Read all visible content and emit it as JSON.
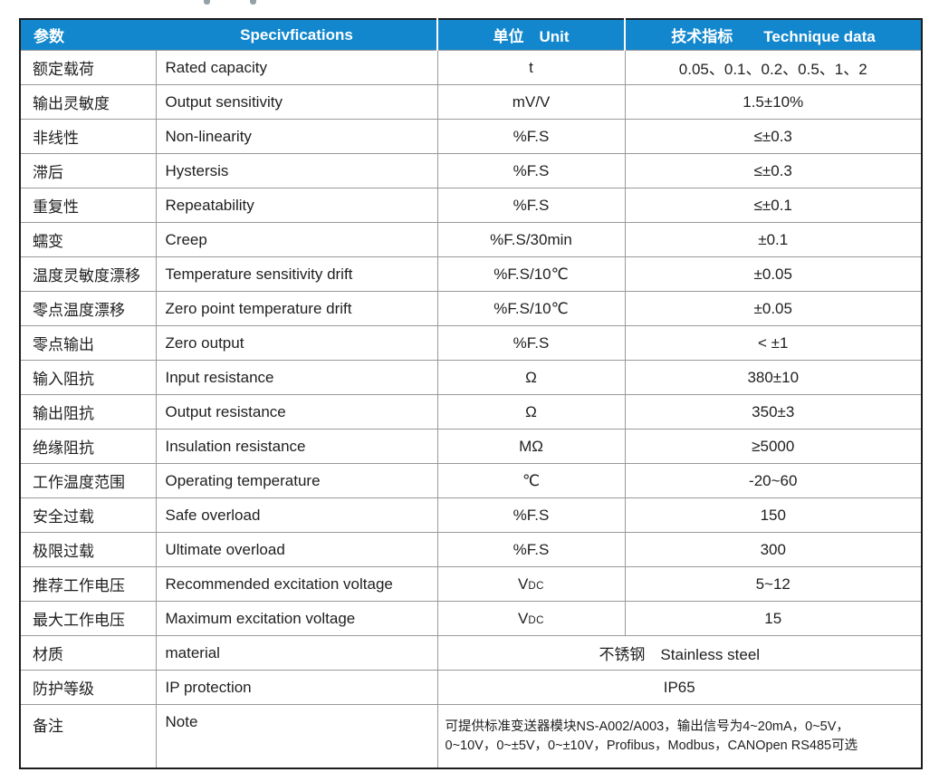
{
  "page": {
    "background_color": "#ffffff",
    "accent_color": "#1287cd",
    "grid_line_color": "#999999",
    "outer_border_color": "#1c1c1c"
  },
  "table": {
    "header": {
      "param_zh": "参数",
      "spec_en": "Specivfications",
      "unit_label": "单位　Unit",
      "tech_label": "技术指标　　Technique data"
    },
    "rows": [
      {
        "zh": "额定载荷",
        "en": "Rated capacity",
        "unit": "t",
        "value": "0.05、0.1、0.2、0.5、1、2"
      },
      {
        "zh": "输出灵敏度",
        "en": "Output sensitivity",
        "unit": "mV/V",
        "value": "1.5±10%"
      },
      {
        "zh": "非线性",
        "en": "Non-linearity",
        "unit": "%F.S",
        "value": "≤±0.3"
      },
      {
        "zh": "滞后",
        "en": "Hystersis",
        "unit": "%F.S",
        "value": "≤±0.3"
      },
      {
        "zh": "重复性",
        "en": "Repeatability",
        "unit": "%F.S",
        "value": "≤±0.1"
      },
      {
        "zh": "蠕变",
        "en": "Creep",
        "unit": "%F.S/30min",
        "value": "±0.1"
      },
      {
        "zh": "温度灵敏度漂移",
        "en": "Temperature sensitivity drift",
        "unit": "%F.S/10℃",
        "value": "±0.05"
      },
      {
        "zh": "零点温度漂移",
        "en": "Zero point temperature drift",
        "unit": "%F.S/10℃",
        "value": "±0.05"
      },
      {
        "zh": "零点输出",
        "en": "Zero output",
        "unit": "%F.S",
        "value": "< ±1"
      },
      {
        "zh": "输入阻抗",
        "en": "Input resistance",
        "unit": "Ω",
        "value": "380±10"
      },
      {
        "zh": "输出阻抗",
        "en": "Output resistance",
        "unit": "Ω",
        "value": "350±3"
      },
      {
        "zh": "绝缘阻抗",
        "en": "Insulation resistance",
        "unit": "MΩ",
        "value": "≥5000"
      },
      {
        "zh": "工作温度范围",
        "en": "Operating temperature",
        "unit": "℃",
        "value": "-20~60"
      },
      {
        "zh": "安全过载",
        "en": "Safe overload",
        "unit": "%F.S",
        "value": "150"
      },
      {
        "zh": "极限过载",
        "en": "Ultimate overload",
        "unit": "%F.S",
        "value": "300"
      },
      {
        "zh": "推荐工作电压",
        "en": "Recommended excitation voltage",
        "unit": {
          "main": "V",
          "sub": "DC"
        },
        "value": "5~12"
      },
      {
        "zh": "最大工作电压",
        "en": "Maximum excitation voltage",
        "unit": {
          "main": "V",
          "sub": "DC"
        },
        "value": "15"
      },
      {
        "zh": "材质",
        "en": "material",
        "merged": true,
        "value": "不锈钢　Stainless steel"
      },
      {
        "zh": "防护等级",
        "en": "IP protection",
        "merged": true,
        "value": "IP65"
      },
      {
        "zh": "备注",
        "en": "Note",
        "merged": true,
        "align": "left",
        "small": true,
        "value_lines": [
          "可提供标准变送器模块NS-A002/A003，输出信号为4~20mA，0~5V，",
          "0~10V，0~±5V，0~±10V，Profibus，Modbus，CANOpen RS485可选"
        ]
      }
    ]
  }
}
